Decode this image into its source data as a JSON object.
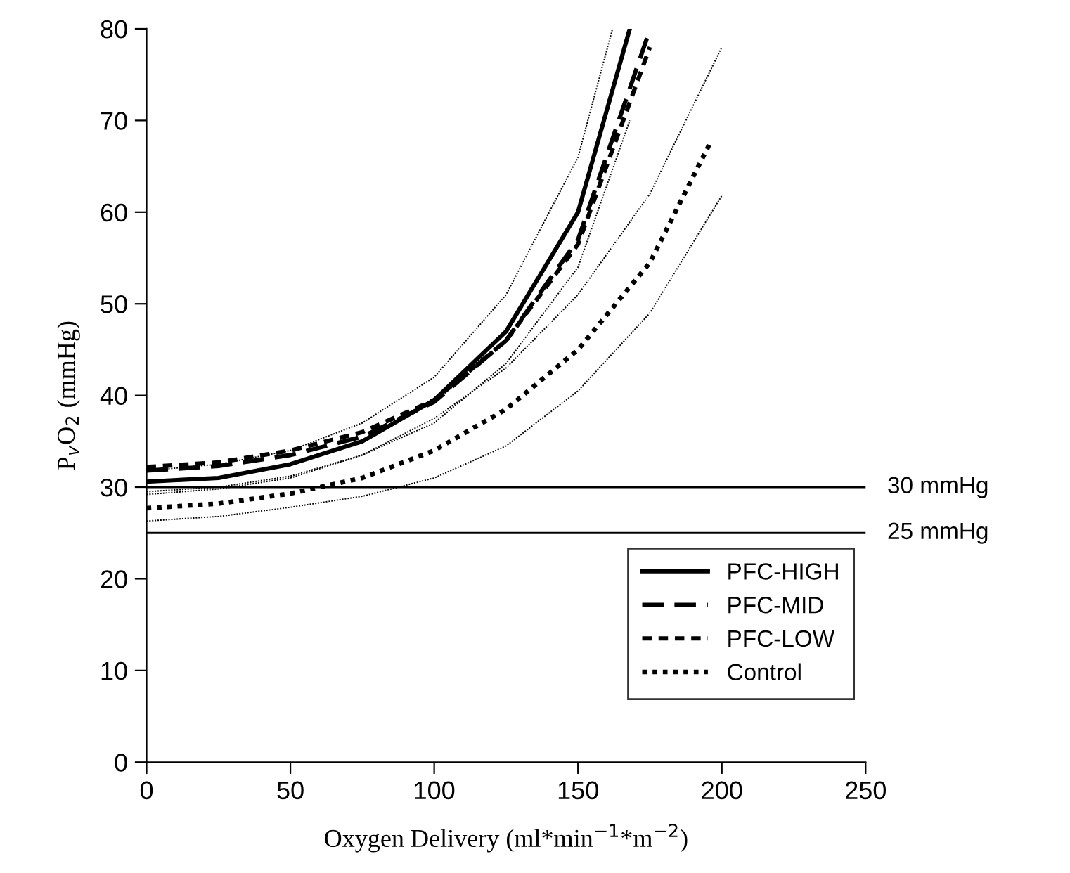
{
  "chart_data": {
    "type": "line",
    "xlabel": "Oxygen Delivery (ml*min$^{−1}$*m$^{−2}$)",
    "ylabel": "P$_{v}$O$_{2}$ (mmHg)",
    "xlim": [
      0,
      250
    ],
    "xticks": [
      0,
      50,
      100,
      150,
      200,
      250
    ],
    "ylim": [
      0,
      80
    ],
    "yticks": [
      0,
      10,
      20,
      30,
      40,
      50,
      60,
      70,
      80
    ],
    "grid": false,
    "legend": "bottom right",
    "marker": "none",
    "series": [
      {
        "name": "PFC-HIGH",
        "color": "#000000",
        "line_style": "solid",
        "x": [
          0,
          25,
          50,
          75,
          100,
          125,
          150,
          168
        ],
        "values": [
          30.6,
          31.0,
          32.5,
          35,
          39.5,
          47,
          60,
          80
        ]
      },
      {
        "name": "PFC-MID",
        "color": "#000000",
        "line_style": "dashed",
        "x": [
          0,
          25,
          50,
          75,
          100,
          125,
          150,
          174
        ],
        "values": [
          31.8,
          32.3,
          33.5,
          35.5,
          39.3,
          46,
          57,
          79
        ]
      },
      {
        "name": "PFC-LOW",
        "color": "#000000",
        "line_style": "short_dashed",
        "x": [
          0,
          25,
          50,
          75,
          100,
          125,
          150,
          175
        ],
        "values": [
          32.2,
          32.7,
          34,
          36,
          39.5,
          46,
          56.5,
          78
        ]
      },
      {
        "name": "Control",
        "color": "#000000",
        "line_style": "dotted",
        "x": [
          0,
          25,
          50,
          75,
          100,
          125,
          150,
          175,
          196
        ],
        "values": [
          27.7,
          28.2,
          29.3,
          31,
          34,
          38.5,
          45,
          54.5,
          67.6
        ]
      },
      {
        "color": "#000000",
        "line_style": "thin_dotted",
        "x": [
          0,
          25,
          50,
          75,
          100,
          125,
          150,
          168
        ],
        "values": [
          29.5,
          30.0,
          31.2,
          33.5,
          37,
          43.5,
          54,
          70
        ]
      },
      {
        "color": "#000000",
        "line_style": "thin_dotted",
        "x": [
          0,
          25,
          50,
          75,
          100,
          125,
          150,
          162
        ],
        "values": [
          31.8,
          32.5,
          34,
          37,
          42,
          51,
          66,
          80
        ]
      },
      {
        "color": "#000000",
        "line_style": "thin_dotted",
        "x": [
          0,
          25,
          50,
          75,
          100,
          125,
          150,
          175,
          200
        ],
        "values": [
          26.3,
          26.8,
          27.8,
          29,
          31,
          34.5,
          40.5,
          49,
          61.8
        ]
      },
      {
        "color": "#000000",
        "line_style": "thin_dotted",
        "x": [
          0,
          25,
          50,
          75,
          100,
          125,
          150,
          175,
          200
        ],
        "values": [
          29.2,
          29.8,
          31,
          33.5,
          37.5,
          43,
          51,
          62,
          78
        ]
      }
    ],
    "ref_lines": [
      {
        "axis": "y",
        "value": 30,
        "label": "30 mmHg",
        "color": "#000000"
      },
      {
        "axis": "y",
        "value": 25,
        "label": "25 mmHg",
        "color": "#000000"
      }
    ]
  }
}
